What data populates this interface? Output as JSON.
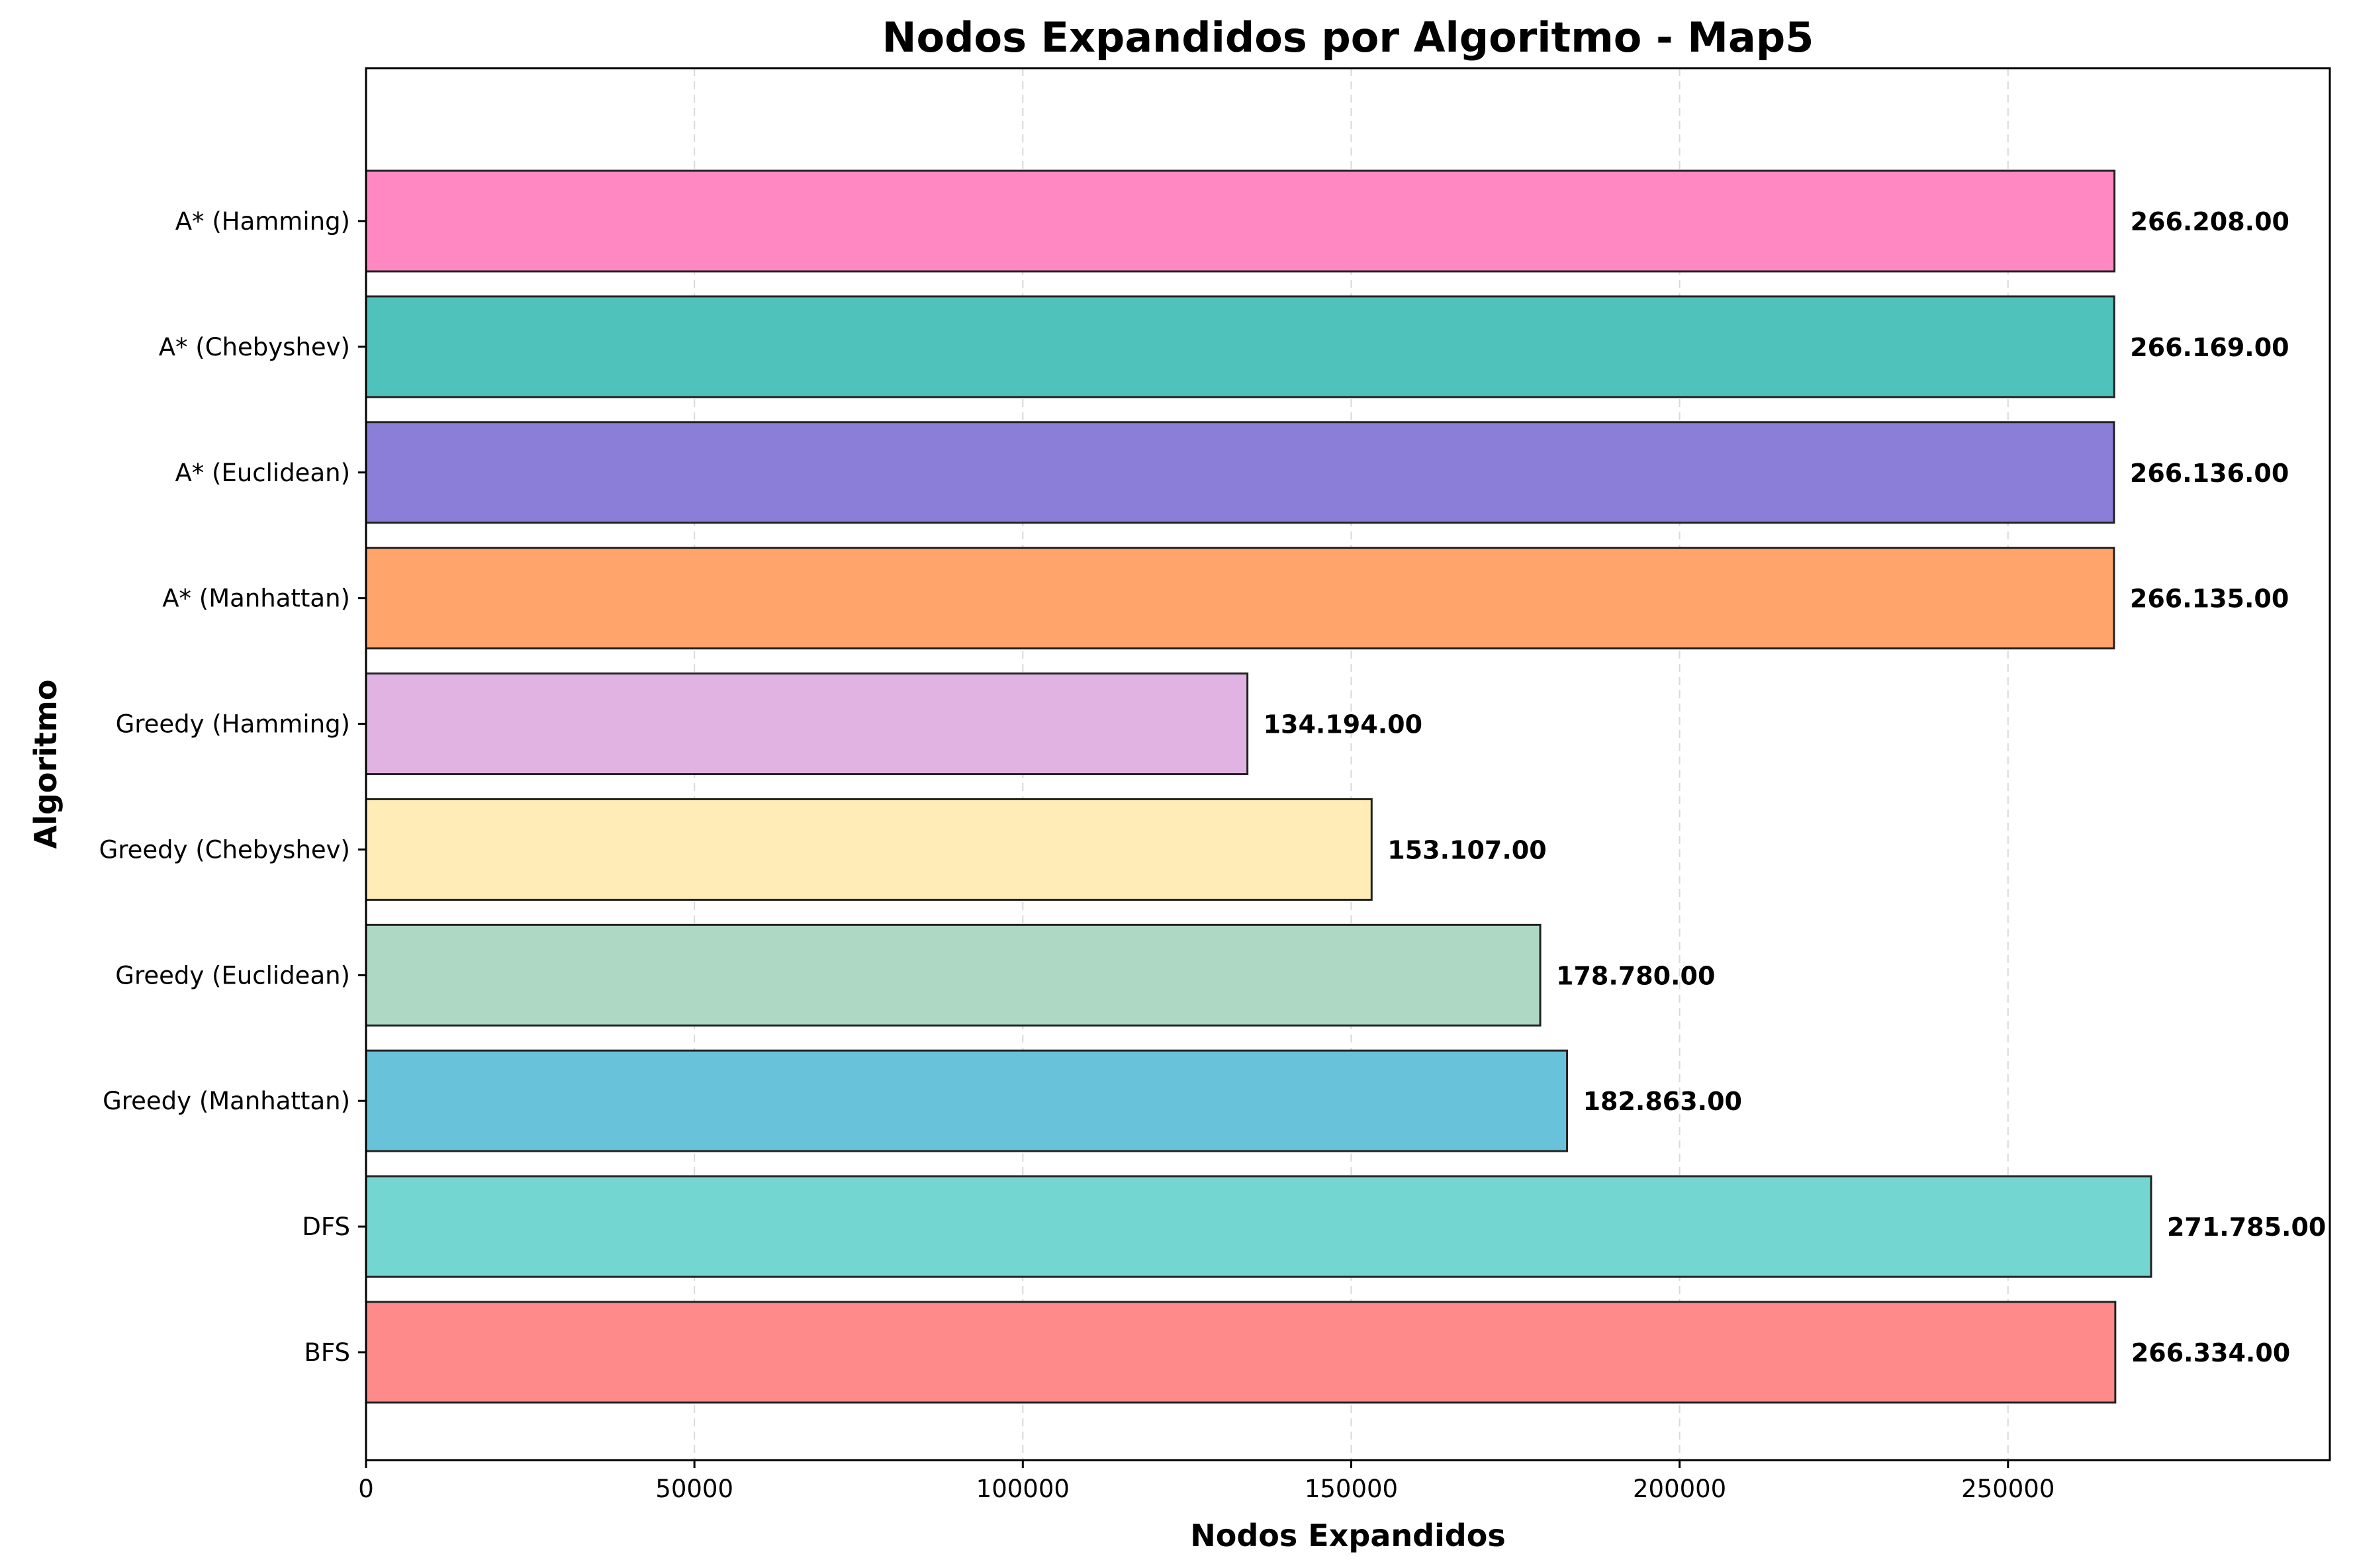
{
  "chart_data": {
    "type": "bar",
    "orientation": "horizontal",
    "title": "Nodos Expandidos por Algoritmo - Map5",
    "xlabel": "Nodos Expandidos",
    "ylabel": "Algoritmo",
    "xlim": [
      0,
      299000
    ],
    "xticks": [
      0,
      50000,
      100000,
      150000,
      200000,
      250000
    ],
    "xtick_labels": [
      "0",
      "50000",
      "100000",
      "150000",
      "200000",
      "250000"
    ],
    "grid": "x-dashed",
    "categories": [
      "BFS",
      "DFS",
      "Greedy (Manhattan)",
      "Greedy (Euclidean)",
      "Greedy (Chebyshev)",
      "Greedy (Hamming)",
      "A* (Manhattan)",
      "A* (Euclidean)",
      "A* (Chebyshev)",
      "A* (Hamming)"
    ],
    "values": [
      266334,
      271785,
      182863,
      178780,
      153107,
      134194,
      266135,
      266136,
      266169,
      266208
    ],
    "value_labels": [
      "266.334.00",
      "271.785.00",
      "182.863.00",
      "178.780.00",
      "153.107.00",
      "134.194.00",
      "266.135.00",
      "266.136.00",
      "266.169.00",
      "266.208.00"
    ],
    "colors": [
      "#ff8a8a",
      "#74d6d0",
      "#68c3da",
      "#aed8c4",
      "#ffecb6",
      "#e1b3e2",
      "#ffa56c",
      "#8a7ed9",
      "#4fc2bb",
      "#ff88c2"
    ]
  }
}
